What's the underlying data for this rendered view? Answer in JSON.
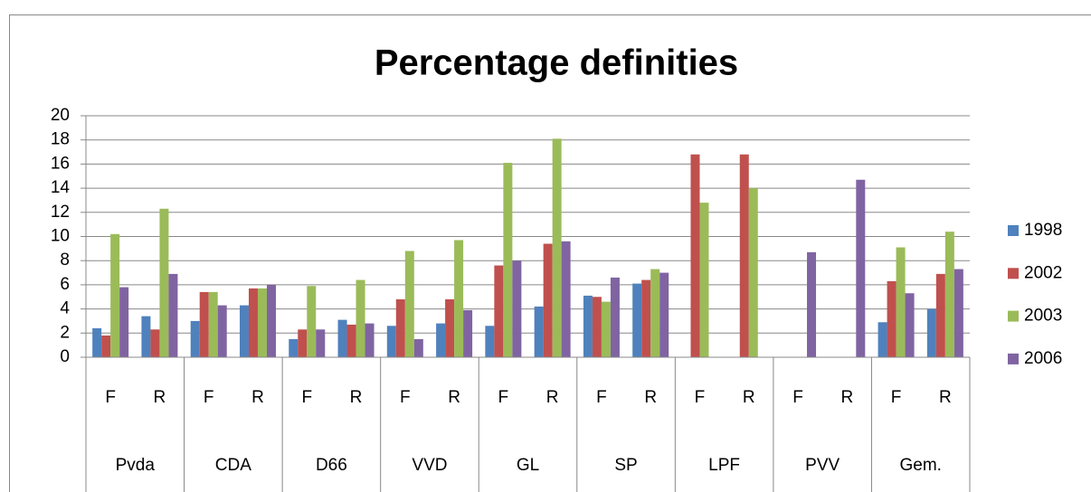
{
  "chart_data": {
    "type": "bar",
    "title": "Percentage definities",
    "categories": [
      "F",
      "R",
      "F",
      "R",
      "F",
      "R",
      "F",
      "R",
      "F",
      "R",
      "F",
      "R",
      "F",
      "R",
      "F",
      "R",
      "F",
      "R"
    ],
    "category_groups": [
      "Pvda",
      "CDA",
      "D66",
      "VVD",
      "GL",
      "SP",
      "LPF",
      "PVV",
      "Gem."
    ],
    "series": [
      {
        "name": "1998",
        "color": "#4f81bd",
        "values": [
          2.4,
          3.4,
          3.0,
          4.3,
          1.5,
          3.1,
          2.6,
          2.8,
          2.6,
          4.2,
          5.1,
          6.1,
          null,
          null,
          null,
          null,
          2.9,
          4.0
        ]
      },
      {
        "name": "2002",
        "color": "#c0504d",
        "values": [
          1.8,
          2.3,
          5.4,
          5.7,
          2.3,
          2.7,
          4.8,
          4.8,
          7.6,
          9.4,
          5.0,
          6.4,
          16.8,
          16.8,
          null,
          null,
          6.3,
          6.9
        ]
      },
      {
        "name": "2003",
        "color": "#9bbb59",
        "values": [
          10.2,
          12.3,
          5.4,
          5.7,
          5.9,
          6.4,
          8.8,
          9.7,
          16.1,
          18.1,
          4.6,
          7.3,
          12.8,
          14.0,
          null,
          null,
          9.1,
          10.4
        ]
      },
      {
        "name": "2006",
        "color": "#8064a2",
        "values": [
          5.8,
          6.9,
          4.3,
          6.0,
          2.3,
          2.8,
          1.5,
          3.9,
          8.0,
          9.6,
          6.6,
          7.0,
          null,
          null,
          8.7,
          14.7,
          5.3,
          7.3
        ]
      }
    ],
    "ylim": [
      0,
      20
    ],
    "yticks": [
      0,
      2,
      4,
      6,
      8,
      10,
      12,
      14,
      16,
      18,
      20
    ],
    "grid": true,
    "legend": "right"
  }
}
